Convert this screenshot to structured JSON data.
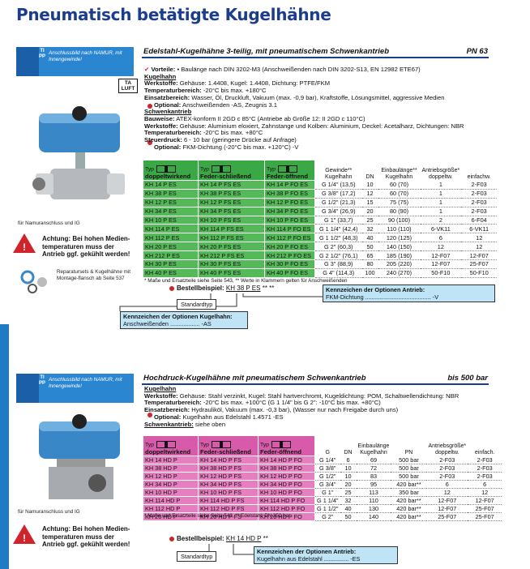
{
  "title": "Pneumatisch betätigte Kugelhähne",
  "sections": [
    {
      "tip_label": "TIPP",
      "tip_text": "Anschlussbild nach NAMUR, mit Innengewinde!",
      "heading": "Edelstahl-Kugelhähne 3-teilig, mit pneumatischem Schwenkantrieb",
      "heading_right": "PN 63",
      "badge": "TA LUFT",
      "image_caption": "für Namuranschluss und IG",
      "warning": "Achtung: Bei hohen Medien-temperaturen muss der Antrieb ggf. gekühlt werden!",
      "repair_note": "Reparatursets & Kugelhähne mit Montage-flansch ab Seite 537",
      "lines": [
        {
          "advantage": "Vorteile:",
          "text": "• Baulänge nach DIN 3202-M3 (Anschweißenden nach DIN 3202-S13, EN 12982 ETE67)"
        },
        {
          "heading": "Kugelhahn"
        },
        {
          "label": "Werkstoffe:",
          "text": "Gehäuse: 1.4408, Kugel: 1.4408, Dichtung: PTFE/FKM"
        },
        {
          "label": "Temperaturbereich:",
          "text": "-20°C bis max. +180°C"
        },
        {
          "label": "Einsatzbereich:",
          "text": "Wasser, Öl, Druckluft, Vakuum (max. -0,9 bar), Kraftstoffe, Lösungsmittel, aggressive Medien"
        },
        {
          "optional": "Optional:",
          "text": "Anschweißenden -AS, Zeugnis 3.1"
        },
        {
          "heading": "Schwenkantrieb"
        },
        {
          "label": "Bauweise:",
          "text": "ATEX-konform II 2GD c 85°C (Antriebe ab Größe 12: II 2GD c 110°C)"
        },
        {
          "label": "Werkstoffe:",
          "text": "Gehäuse: Aluminium eloxiert, Zahnstange und Kolben: Aluminium, Deckel: Acetalharz, Dichtungen: NBR"
        },
        {
          "label": "Temperaturbereich:",
          "text": "-20°C bis max. +80°C"
        },
        {
          "label": "Steuerdruck:",
          "text": "6 - 10 bar (geringere Drücke auf Anfrage)"
        },
        {
          "optional": "Optional:",
          "text": "FKM-Dichtung (-20°C bis max. +120°C) -V"
        }
      ],
      "table": {
        "type_color": "#55b95a",
        "type_head_color": "#3aa845",
        "type_head": [
          [
            "Typ",
            "doppeltwirkend"
          ],
          [
            "Typ",
            "Feder-schließend"
          ],
          [
            "Typ",
            "Feder-öffnend"
          ]
        ],
        "spec_head": [
          [
            "Gewinde**",
            "Kugelhahn"
          ],
          [
            "DN"
          ],
          [
            "Einbaulänge**",
            "Kugelhahn"
          ],
          [
            "Antriebsgröße*",
            "doppeltw."
          ],
          [
            "einfachw."
          ]
        ],
        "rows": [
          {
            "types": [
              "KH 14 P ES",
              "KH 14 P FS ES",
              "KH 14 P FO ES"
            ],
            "specs": [
              "G 1/4\" (13,5)",
              "10",
              "60 (70)",
              "1",
              "2-F03"
            ]
          },
          {
            "types": [
              "KH 38 P ES",
              "KH 38 P FS ES",
              "KH 38 P FO ES"
            ],
            "specs": [
              "G 3/8\" (17,2)",
              "12",
              "60 (70)",
              "1",
              "2-F03"
            ]
          },
          {
            "types": [
              "KH 12 P ES",
              "KH 12 P FS ES",
              "KH 12 P FO ES"
            ],
            "specs": [
              "G 1/2\" (21,3)",
              "15",
              "75 (75)",
              "1",
              "2-F03"
            ]
          },
          {
            "types": [
              "KH 34 P ES",
              "KH 34 P FS ES",
              "KH 34 P FO ES"
            ],
            "specs": [
              "G 3/4\" (26,9)",
              "20",
              "80 (90)",
              "1",
              "2-F03"
            ]
          },
          {
            "types": [
              "KH 10 P ES",
              "KH 10 P FS ES",
              "KH 10 P FO ES"
            ],
            "specs": [
              "G 1\" (33,7)",
              "25",
              "90 (100)",
              "2",
              "6-F04"
            ]
          },
          {
            "types": [
              "KH 114 P ES",
              "KH 114 P FS ES",
              "KH 114 P FO ES"
            ],
            "specs": [
              "G 1 1/4\" (42,4)",
              "32",
              "110 (110)",
              "6-VK11",
              "6-VK11"
            ]
          },
          {
            "types": [
              "KH 112 P ES",
              "KH 112 P FS ES",
              "KH 112 P FO ES"
            ],
            "specs": [
              "G 1 1/2\" (48,3)",
              "40",
              "120 (125)",
              "6",
              "12"
            ]
          },
          {
            "types": [
              "KH 20 P ES",
              "KH 20 P FS ES",
              "KH 20 P FO ES"
            ],
            "specs": [
              "G 2\" (60,3)",
              "50",
              "140 (150)",
              "12",
              "12"
            ]
          },
          {
            "types": [
              "KH 212 P ES",
              "KH 212 P FS ES",
              "KH 212 P FO ES"
            ],
            "specs": [
              "G 2 1/2\" (76,1)",
              "65",
              "185 (190)",
              "12-F07",
              "12-F07"
            ]
          },
          {
            "types": [
              "KH 30 P ES",
              "KH 30 P FS ES",
              "KH 30 P FO ES"
            ],
            "specs": [
              "G 3\" (88,9)",
              "80",
              "205 (220)",
              "12-F07",
              "25-F07"
            ]
          },
          {
            "types": [
              "KH 40 P ES",
              "KH 40 P FS ES",
              "KH 40 P FO ES"
            ],
            "specs": [
              "G 4\" (114,3)",
              "100",
              "240 (270)",
              "50-F10",
              "50-F10"
            ]
          }
        ]
      },
      "footnote": "* Maße und Ersatzteile siehe Seite 543, ** Werte in Klammern gelten für Anschweißenden",
      "order": {
        "label": "Bestellbeispiel:",
        "example": "KH 38 P ES",
        "suffix": "** **",
        "standard": "Standardtyp",
        "boxes": [
          {
            "title": "Kennzeichen der Optionen Antrieb:",
            "text": "FKM-Dichtung ........................................ -V"
          },
          {
            "title": "Kennzeichen der Optionen Kugelhahn:",
            "text": "Anschweißenden .................. -AS"
          }
        ]
      }
    },
    {
      "tip_label": "TIPP",
      "tip_text": "Anschlussbild nach NAMUR, mit Innengewinde!",
      "heading": "Hochdruck-Kugelhähne mit pneumatischem Schwenkantrieb",
      "heading_right": "bis 500 bar",
      "image_caption": "für Namuranschluss und IG",
      "warning": "Achtung: Bei hohen Medien-temperaturen muss der Antrieb ggf. gekühlt werden!",
      "lines": [
        {
          "heading": "Kugelhahn"
        },
        {
          "label": "Werkstoffe:",
          "text": "Gehäuse: Stahl verzinkt, Kugel: Stahl hartverchromt, Kugeldichtung: POM, Schaltwellendichtung: NBR"
        },
        {
          "label": "Temperaturbereich:",
          "text": "-20°C bis max. +100°C (G 1 1/4\" bis G 2\": -10°C bis max. +80°C)"
        },
        {
          "label": "Einsatzbereich:",
          "text": "Hydrauliköl, Vakuum (max. -0,3 bar), (Wasser nur nach Freigabe durch uns)"
        },
        {
          "optional": "Optional:",
          "text": "Kugelhahn aus Edelstahl 1.4571 -ES"
        },
        {
          "heading": "Schwenkantrieb:",
          "text": "siehe oben"
        }
      ],
      "table": {
        "type_color": "#e57fbf",
        "type_head_color": "#d85aab",
        "type_head": [
          [
            "Typ",
            "doppeltwirkend"
          ],
          [
            "Typ",
            "Feder-schließend"
          ],
          [
            "Typ",
            "Feder-öffnend"
          ]
        ],
        "spec_head": [
          [
            "G"
          ],
          [
            "DN"
          ],
          [
            "Einbaulänge",
            "Kugelhahn"
          ],
          [
            "PN"
          ],
          [
            "Antriebsgröße*",
            "doppeltw."
          ],
          [
            "einfach."
          ]
        ],
        "rows": [
          {
            "types": [
              "KH 14 HD P",
              "KH 14 HD P FS",
              "KH 14 HD P FO"
            ],
            "specs": [
              "G 1/4\"",
              "6",
              "69",
              "500 bar",
              "2-F03",
              "2-F03"
            ]
          },
          {
            "types": [
              "KH 38 HD P",
              "KH 38 HD P FS",
              "KH 38 HD P FO"
            ],
            "specs": [
              "G 3/8\"",
              "10",
              "72",
              "500 bar",
              "2-F03",
              "2-F03"
            ]
          },
          {
            "types": [
              "KH 12 HD P",
              "KH 12 HD P FS",
              "KH 12 HD P FO"
            ],
            "specs": [
              "G 1/2\"",
              "10",
              "83",
              "500 bar",
              "2-F03",
              "2-F03"
            ]
          },
          {
            "types": [
              "KH 34 HD P",
              "KH 34 HD P FS",
              "KH 34 HD P FO"
            ],
            "specs": [
              "G 3/4\"",
              "20",
              "95",
              "420 bar**",
              "6",
              "6"
            ]
          },
          {
            "types": [
              "KH 10 HD P",
              "KH 10 HD P FS",
              "KH 10 HD P FO"
            ],
            "specs": [
              "G 1\"",
              "25",
              "113",
              "350 bar",
              "12",
              "12"
            ]
          },
          {
            "types": [
              "KH 114 HD P",
              "KH 114 HD P FS",
              "KH 114 HD P FO"
            ],
            "specs": [
              "G 1 1/4\"",
              "32",
              "110",
              "420 bar**",
              "12-F07",
              "12-F07"
            ]
          },
          {
            "types": [
              "KH 112 HD P",
              "KH 112 HD P FS",
              "KH 112 HD P FO"
            ],
            "specs": [
              "G 1 1/2\"",
              "40",
              "130",
              "420 bar**",
              "12-F07",
              "25-F07"
            ]
          },
          {
            "types": [
              "KH 20 HD P",
              "KH 20 HD P FS",
              "KH 20 HD P FO"
            ],
            "specs": [
              "G 2\"",
              "50",
              "140",
              "420 bar**",
              "25-F07",
              "25-F07"
            ]
          }
        ]
      },
      "footnote": "* Maße und Ersatzteile siehe Seite 543, ** Edelstahl: PN 350 bar",
      "order": {
        "label": "Bestellbeispiel:",
        "example": "KH 14 HD P",
        "suffix": "**",
        "standard": "Standardtyp",
        "boxes": [
          {
            "title": "Kennzeichen der Optionen Antrieb:",
            "text": "Kugelhahn aus Edelstahl ............... -ES"
          }
        ]
      }
    }
  ]
}
